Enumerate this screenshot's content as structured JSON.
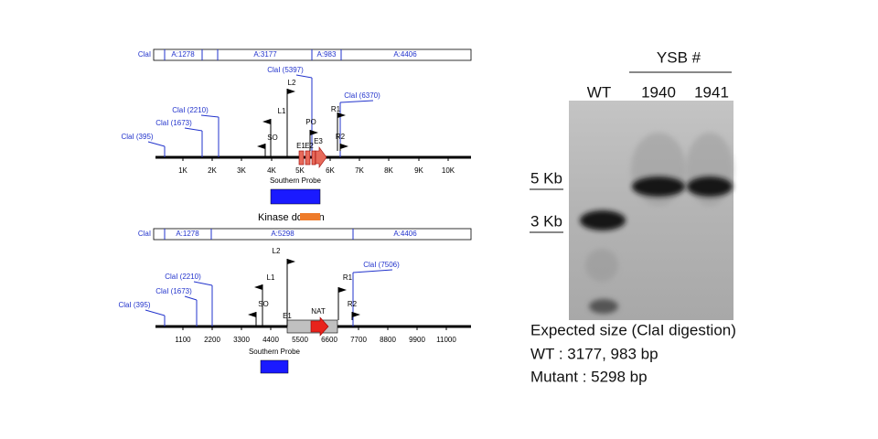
{
  "top_map": {
    "restriction_bar": {
      "enzyme": "ClaI",
      "fragments": [
        "A:1278",
        "A:3177",
        "A:983",
        "A:4406"
      ]
    },
    "sites": [
      "ClaI (395)",
      "ClaI (1673)",
      "ClaI (2210)",
      "ClaI (5397)",
      "ClaI (6370)"
    ],
    "primers": [
      "SO",
      "L1",
      "L2",
      "PO",
      "R1",
      "R2"
    ],
    "exons": [
      "E1",
      "E2",
      "E3"
    ],
    "axis_labels": [
      "1K",
      "2K",
      "3K",
      "4K",
      "5K",
      "6K",
      "7K",
      "8K",
      "9K",
      "10K"
    ],
    "probe_label": "Southern Probe",
    "domain_label": "Kinase domain"
  },
  "bottom_map": {
    "restriction_bar": {
      "enzyme": "ClaI",
      "fragments": [
        "A:1278",
        "A:5298",
        "A:4406"
      ]
    },
    "sites": [
      "ClaI (395)",
      "ClaI (1673)",
      "ClaI (2210)",
      "ClaI (7506)"
    ],
    "primers": [
      "SO",
      "L1",
      "L2",
      "R1",
      "R2"
    ],
    "exons": [
      "E1"
    ],
    "marker_label": "NAT",
    "axis_labels": [
      "1100",
      "2200",
      "3300",
      "4400",
      "5500",
      "6600",
      "7700",
      "8800",
      "9900",
      "11000"
    ],
    "probe_label": "Southern Probe"
  },
  "blot": {
    "group_label": "YSB #",
    "lanes": [
      "WT",
      "1940",
      "1941"
    ],
    "markers": [
      "5 Kb",
      "3 Kb"
    ],
    "notes": [
      "Expected size (ClaI digestion)",
      "WT : 3177, 983 bp",
      "Mutant : 5298 bp"
    ]
  }
}
